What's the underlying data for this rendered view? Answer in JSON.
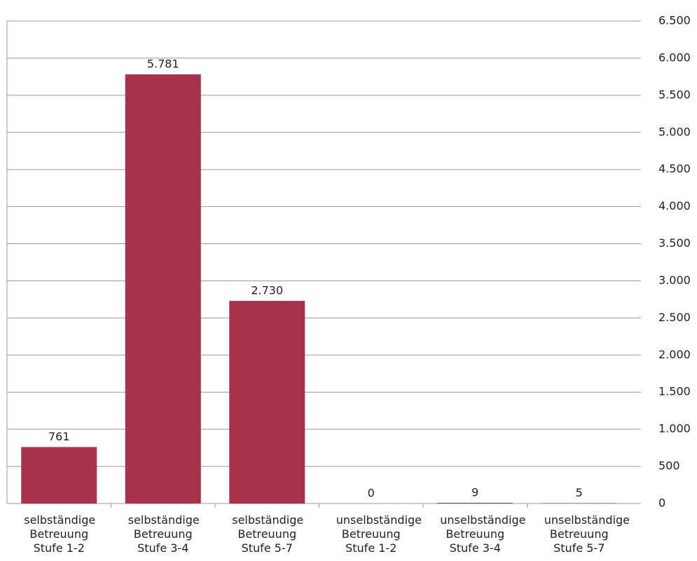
{
  "chart_data": {
    "type": "bar",
    "categories": [
      "selbständige Betreuung Stufe 1-2",
      "selbständige Betreuung Stufe 3-4",
      "selbständige Betreuung Stufe 5-7",
      "unselbständige Betreuung Stufe 1-2",
      "unselbständige Betreuung Stufe 3-4",
      "unselbständige Betreuung Stufe 5-7"
    ],
    "values": [
      761,
      5781,
      2730,
      0,
      9,
      5
    ],
    "value_labels": [
      "761",
      "5.781",
      "2.730",
      "0",
      "9",
      "5"
    ],
    "color": "#a8324b",
    "ylim": [
      0,
      6500
    ],
    "yticks": [
      0,
      500,
      {
        "value": 1000,
        "label": "1.000"
      },
      {
        "value": 1500,
        "label": "1.500"
      },
      {
        "value": 2000,
        "label": "2.000"
      },
      {
        "value": 2500,
        "label": "2.500"
      },
      {
        "value": 3000,
        "label": "3.000"
      },
      {
        "value": 3500,
        "label": "3.500"
      },
      {
        "value": 4000,
        "label": "4.000"
      },
      {
        "value": 4500,
        "label": "4.500"
      },
      {
        "value": 5000,
        "label": "5.000"
      },
      {
        "value": 5500,
        "label": "5.500"
      },
      {
        "value": 6000,
        "label": "6.000"
      },
      {
        "value": 6500,
        "label": "6.500"
      }
    ],
    "grid": true,
    "y_axis_side": "right"
  }
}
